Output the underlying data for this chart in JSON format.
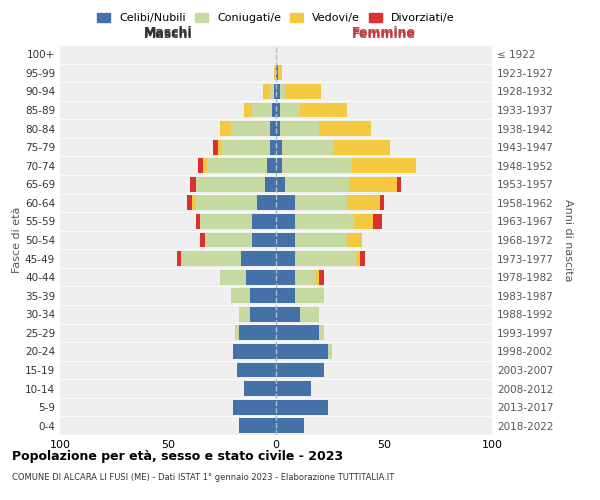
{
  "age_groups": [
    "0-4",
    "5-9",
    "10-14",
    "15-19",
    "20-24",
    "25-29",
    "30-34",
    "35-39",
    "40-44",
    "45-49",
    "50-54",
    "55-59",
    "60-64",
    "65-69",
    "70-74",
    "75-79",
    "80-84",
    "85-89",
    "90-94",
    "95-99",
    "100+"
  ],
  "birth_years": [
    "2018-2022",
    "2013-2017",
    "2008-2012",
    "2003-2007",
    "1998-2002",
    "1993-1997",
    "1988-1992",
    "1983-1987",
    "1978-1982",
    "1973-1977",
    "1968-1972",
    "1963-1967",
    "1958-1962",
    "1953-1957",
    "1948-1952",
    "1943-1947",
    "1938-1942",
    "1933-1937",
    "1928-1932",
    "1923-1927",
    "≤ 1922"
  ],
  "colors": {
    "celibi": "#4472a8",
    "coniugati": "#c5d9a0",
    "vedovi": "#f5c842",
    "divorziati": "#d93030"
  },
  "maschi_celibi": [
    17,
    20,
    15,
    18,
    20,
    17,
    12,
    12,
    14,
    16,
    11,
    11,
    9,
    5,
    4,
    3,
    3,
    2,
    1,
    0,
    0
  ],
  "maschi_coniugati": [
    0,
    0,
    0,
    0,
    0,
    2,
    5,
    9,
    12,
    28,
    22,
    24,
    28,
    32,
    28,
    22,
    18,
    9,
    2,
    0,
    0
  ],
  "maschi_vedovi": [
    0,
    0,
    0,
    0,
    0,
    0,
    0,
    0,
    0,
    0,
    0,
    0,
    2,
    0,
    2,
    2,
    5,
    4,
    3,
    1,
    0
  ],
  "maschi_divorziati": [
    0,
    0,
    0,
    0,
    0,
    0,
    0,
    0,
    0,
    2,
    2,
    2,
    2,
    3,
    2,
    2,
    0,
    0,
    0,
    0,
    0
  ],
  "femmine_celibi": [
    13,
    24,
    16,
    22,
    24,
    20,
    11,
    9,
    9,
    9,
    9,
    9,
    9,
    4,
    3,
    3,
    2,
    2,
    2,
    1,
    0
  ],
  "femmine_coniugati": [
    0,
    0,
    0,
    0,
    2,
    2,
    9,
    13,
    9,
    28,
    24,
    27,
    24,
    30,
    32,
    24,
    18,
    9,
    2,
    0,
    0
  ],
  "femmine_vedovi": [
    0,
    0,
    0,
    0,
    0,
    0,
    0,
    0,
    2,
    2,
    7,
    9,
    15,
    22,
    30,
    26,
    24,
    22,
    17,
    2,
    0
  ],
  "femmine_divorziati": [
    0,
    0,
    0,
    0,
    0,
    0,
    0,
    0,
    2,
    2,
    0,
    4,
    2,
    2,
    0,
    0,
    0,
    0,
    0,
    0,
    0
  ],
  "legend_labels": [
    "Celibi/Nubili",
    "Coniugati/e",
    "Vedovi/e",
    "Divorziati/e"
  ],
  "title": "Popolazione per età, sesso e stato civile - 2023",
  "subtitle": "COMUNE DI ALCARA LI FUSI (ME) - Dati ISTAT 1° gennaio 2023 - Elaborazione TUTTITALIA.IT",
  "label_maschi": "Maschi",
  "label_femmine": "Femmine",
  "label_fasce": "Fasce di età",
  "label_anni": "Anni di nascita",
  "xlim": 100
}
